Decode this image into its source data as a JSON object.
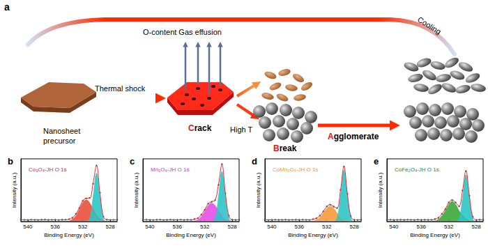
{
  "diagram": {
    "panel": "a",
    "precursor": "Nanosheet precursor",
    "thermal_shock": "Thermal shock",
    "gas": "O-content Gas effusion",
    "crack": "Crack",
    "high_t": "High T",
    "break": "Break",
    "agglomerate": "Agglomerate",
    "cooling": "Cooling"
  },
  "chart_data": [
    {
      "type": "line",
      "panel": "b",
      "title": "Co₃O₄-JH O 1s",
      "color": "#e8262a",
      "xlabel": "Binding Energy (eV)",
      "ylabel": "Intensity (a.u.)",
      "xlim": [
        541,
        527
      ],
      "xticks": [
        540,
        536,
        532,
        528
      ],
      "ylim": [
        0,
        110
      ],
      "grid": false,
      "tick_labels": "x",
      "x": [
        541,
        540.5,
        540,
        539.5,
        539,
        538.5,
        538,
        537.5,
        537,
        536.5,
        536,
        535.5,
        535,
        534.5,
        534,
        533.5,
        533,
        532.5,
        532,
        531.5,
        531,
        530.5,
        530,
        529.5,
        529,
        528.5,
        528,
        527.5,
        527
      ],
      "series": [
        {
          "type": "area",
          "color": "#e8503f",
          "values": [
            0,
            0,
            0,
            0,
            0,
            0,
            0,
            0,
            0,
            0,
            0,
            0,
            0,
            0,
            1,
            4,
            10,
            21,
            33,
            38,
            33,
            21,
            10,
            4,
            1,
            0,
            0,
            0,
            0
          ]
        },
        {
          "type": "area",
          "color": "#2cc5c5",
          "values": [
            0,
            0,
            0,
            0,
            0,
            0,
            0,
            0,
            0,
            0,
            0,
            0,
            0,
            0,
            0,
            0,
            0,
            0,
            0,
            0,
            5,
            43,
            85,
            43,
            5,
            0,
            0,
            0,
            0
          ]
        },
        {
          "type": "line",
          "color": "#e8262a",
          "values": [
            3,
            3,
            3,
            3,
            3,
            3,
            3,
            3,
            3,
            3,
            3,
            3,
            3,
            3,
            4,
            7,
            13,
            24,
            36,
            41,
            41,
            67,
            98,
            50,
            9,
            3,
            3,
            3,
            3
          ]
        },
        {
          "type": "scatter",
          "color": "#333333",
          "values": [
            3.4,
            3.1,
            2.8,
            3.3,
            3.0,
            2.7,
            3.2,
            3.5,
            2.9,
            3.1,
            3.3,
            2.8,
            3.2,
            3.4,
            4.3,
            6.6,
            13.4,
            23.5,
            36.4,
            40.6,
            41.5,
            66.2,
            98.3,
            50.6,
            8.6,
            3.3,
            2.8,
            3.1,
            3.2
          ]
        }
      ]
    },
    {
      "type": "line",
      "panel": "c",
      "title": "Mn₃O₄-JH O 1s",
      "color": "#ee22ee",
      "xlabel": "Binding Energy (eV)",
      "ylabel": "Intensity (a.u.)",
      "xlim": [
        541,
        527
      ],
      "xticks": [
        540,
        536,
        532,
        528
      ],
      "ylim": [
        0,
        110
      ],
      "grid": false,
      "tick_labels": "x",
      "x": [
        541,
        540.5,
        540,
        539.5,
        539,
        538.5,
        538,
        537.5,
        537,
        536.5,
        536,
        535.5,
        535,
        534.5,
        534,
        533.5,
        533,
        532.5,
        532,
        531.5,
        531,
        530.5,
        530,
        529.5,
        529,
        528.5,
        528,
        527.5,
        527
      ],
      "series": [
        {
          "type": "area",
          "color": "#e64fe6",
          "values": [
            0,
            0,
            0,
            0,
            0,
            0,
            0,
            0,
            0,
            0,
            0,
            0,
            0,
            0,
            0,
            1,
            3,
            9,
            18,
            28,
            32,
            28,
            18,
            9,
            3,
            1,
            0,
            0,
            0
          ]
        },
        {
          "type": "area",
          "color": "#2cc5c5",
          "values": [
            0,
            0,
            0,
            0,
            0,
            0,
            0,
            0,
            0,
            0,
            0,
            0,
            0,
            0,
            0,
            0,
            0,
            0,
            0,
            0,
            0,
            6,
            44,
            88,
            44,
            6,
            0,
            0,
            0
          ]
        },
        {
          "type": "line",
          "color": "#e8262a",
          "values": [
            3,
            3,
            3,
            3,
            3,
            3,
            3,
            3,
            3,
            3,
            3,
            3,
            3,
            3,
            3,
            4,
            6,
            12,
            21,
            31,
            35,
            37,
            65,
            100,
            50,
            10,
            3,
            3,
            3
          ]
        },
        {
          "type": "scatter",
          "color": "#333333",
          "values": [
            2.9,
            3.3,
            3.1,
            2.7,
            3.2,
            3.4,
            2.8,
            3.0,
            3.3,
            2.9,
            3.1,
            3.4,
            2.8,
            3.2,
            3.0,
            4.4,
            5.7,
            12.3,
            20.6,
            31.4,
            34.6,
            37.5,
            64.4,
            100.6,
            49.5,
            10.4,
            3.2,
            2.9,
            3.1
          ]
        }
      ]
    },
    {
      "type": "line",
      "panel": "d",
      "title": "CoMn₂O₄-JH O 1s",
      "color": "#f59a1a",
      "xlabel": "Binding Energy (eV)",
      "ylabel": "Intensity (a.u.)",
      "xlim": [
        541,
        527
      ],
      "xticks": [
        540,
        536,
        532,
        528
      ],
      "ylim": [
        0,
        110
      ],
      "grid": false,
      "tick_labels": "x",
      "x": [
        541,
        540.5,
        540,
        539.5,
        539,
        538.5,
        538,
        537.5,
        537,
        536.5,
        536,
        535.5,
        535,
        534.5,
        534,
        533.5,
        533,
        532.5,
        532,
        531.5,
        531,
        530.5,
        530,
        529.5,
        529,
        528.5,
        528,
        527.5,
        527
      ],
      "series": [
        {
          "type": "area",
          "color": "#f59a3a",
          "values": [
            0,
            0,
            0,
            0,
            0,
            0,
            0,
            0,
            0,
            0,
            0,
            0,
            0,
            0,
            1,
            3,
            7,
            15,
            23,
            27,
            23,
            15,
            7,
            3,
            1,
            0,
            0,
            0,
            0
          ]
        },
        {
          "type": "area",
          "color": "#2cc5c5",
          "values": [
            0,
            0,
            0,
            0,
            0,
            0,
            0,
            0,
            0,
            0,
            0,
            0,
            0,
            0,
            0,
            0,
            0,
            0,
            0,
            0,
            0,
            6,
            45,
            90,
            45,
            6,
            0,
            0,
            0
          ]
        },
        {
          "type": "line",
          "color": "#e8262a",
          "values": [
            3,
            3,
            3,
            3,
            3,
            3,
            3,
            3,
            3,
            3,
            3,
            3,
            3,
            3,
            4,
            6,
            10,
            18,
            26,
            30,
            26,
            24,
            55,
            96,
            49,
            9,
            3,
            3,
            3
          ]
        },
        {
          "type": "scatter",
          "color": "#333333",
          "values": [
            3.2,
            2.8,
            3.1,
            3.3,
            2.9,
            3.0,
            3.4,
            2.7,
            3.1,
            3.2,
            2.9,
            3.3,
            3.0,
            2.8,
            4.3,
            5.6,
            10.4,
            17.6,
            26.5,
            29.6,
            26.4,
            23.5,
            55.6,
            96.4,
            48.5,
            9.4,
            3.1,
            2.8,
            3.2
          ]
        }
      ]
    },
    {
      "type": "line",
      "panel": "e",
      "title": "CoFe₂O₄-JH O 1s",
      "color": "#1f8a2a",
      "xlabel": "Binding Energy (eV)",
      "ylabel": "Intensity (a.u.)",
      "xlim": [
        541,
        527
      ],
      "xticks": [
        540,
        536,
        532,
        528
      ],
      "ylim": [
        0,
        110
      ],
      "grid": false,
      "tick_labels": "x",
      "x": [
        541,
        540.5,
        540,
        539.5,
        539,
        538.5,
        538,
        537.5,
        537,
        536.5,
        536,
        535.5,
        535,
        534.5,
        534,
        533.5,
        533,
        532.5,
        532,
        531.5,
        531,
        530.5,
        530,
        529.5,
        529,
        528.5,
        528,
        527.5,
        527
      ],
      "series": [
        {
          "type": "area",
          "color": "#3aa83a",
          "values": [
            0,
            0,
            0,
            0,
            0,
            0,
            0,
            0,
            0,
            0,
            0,
            0,
            0,
            0,
            1,
            4,
            10,
            19,
            30,
            35,
            30,
            19,
            10,
            4,
            1,
            0,
            0,
            0,
            0
          ]
        },
        {
          "type": "area",
          "color": "#2cc5c5",
          "values": [
            0,
            0,
            0,
            0,
            0,
            0,
            0,
            0,
            0,
            0,
            0,
            0,
            0,
            0,
            0,
            0,
            0,
            0,
            0,
            0,
            0,
            5,
            41,
            82,
            41,
            5,
            0,
            0,
            0
          ]
        },
        {
          "type": "line",
          "color": "#e8262a",
          "values": [
            3,
            3,
            3,
            3,
            3,
            3,
            3,
            3,
            3,
            3,
            3,
            3,
            3,
            3,
            4,
            7,
            13,
            22,
            33,
            38,
            33,
            27,
            54,
            89,
            45,
            8,
            3,
            3,
            3
          ]
        },
        {
          "type": "scatter",
          "color": "#333333",
          "values": [
            3.1,
            3.3,
            2.8,
            3.0,
            3.2,
            2.9,
            3.4,
            3.1,
            2.7,
            3.3,
            3.0,
            3.2,
            2.9,
            3.1,
            4.4,
            6.6,
            13.5,
            21.6,
            33.4,
            37.5,
            33.5,
            26.6,
            54.5,
            88.6,
            45.4,
            8.4,
            2.8,
            3.2,
            3.0
          ]
        }
      ]
    }
  ]
}
